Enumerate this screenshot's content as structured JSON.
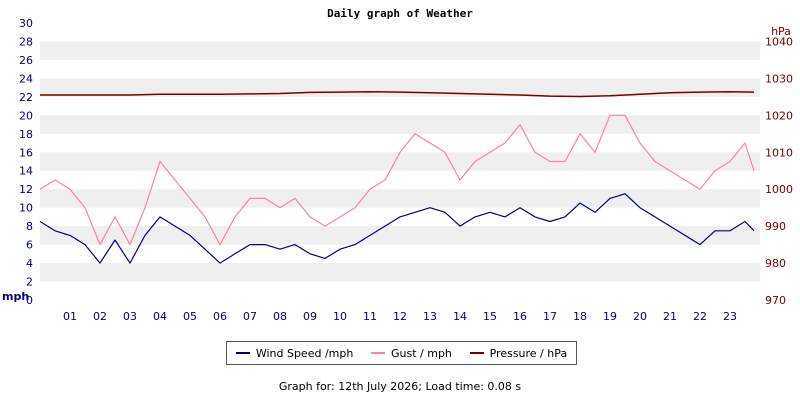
{
  "chart_data": {
    "type": "line",
    "title": "Daily graph of Weather",
    "left_axis": {
      "unit": "mph",
      "ylim": [
        0,
        30
      ],
      "ticks": [
        0,
        2,
        4,
        6,
        8,
        10,
        12,
        14,
        16,
        18,
        20,
        22,
        24,
        26,
        28,
        30
      ]
    },
    "right_axis": {
      "unit": "hPa",
      "ylim": [
        970,
        1045
      ],
      "ticks": [
        970,
        980,
        990,
        1000,
        1010,
        1020,
        1030,
        1040
      ]
    },
    "x_axis": {
      "ticks": [
        "01",
        "02",
        "03",
        "04",
        "05",
        "06",
        "07",
        "08",
        "09",
        "10",
        "11",
        "12",
        "13",
        "14",
        "15",
        "16",
        "17",
        "18",
        "19",
        "20",
        "21",
        "22",
        "23"
      ],
      "xlim": [
        0,
        24
      ],
      "unit_hours": true
    },
    "grid": "horizontal bands",
    "legend_position": "bottom",
    "series": [
      {
        "name": "Wind Speed /mph",
        "axis": "left",
        "color": "#000080",
        "x": [
          0,
          0.5,
          1,
          1.5,
          2,
          2.5,
          3,
          3.5,
          4,
          4.5,
          5,
          5.5,
          6,
          6.5,
          7,
          7.5,
          8,
          8.5,
          9,
          9.5,
          10,
          10.5,
          11,
          11.5,
          12,
          12.5,
          13,
          13.5,
          14,
          14.5,
          15,
          15.5,
          16,
          16.5,
          17,
          17.5,
          18,
          18.5,
          19,
          19.5,
          20,
          20.5,
          21,
          21.5,
          22,
          22.5,
          23,
          23.5,
          23.8
        ],
        "values": [
          8.5,
          7.5,
          7,
          6,
          4,
          6.5,
          4,
          7,
          9,
          8,
          7,
          5.5,
          4,
          5,
          6,
          6,
          5.5,
          6,
          5,
          4.5,
          5.5,
          6,
          7,
          8,
          9,
          9.5,
          10,
          9.5,
          8,
          9,
          9.5,
          9,
          10,
          9,
          8.5,
          9,
          10.5,
          9.5,
          11,
          11.5,
          10,
          9,
          8,
          7,
          6,
          7.5,
          7.5,
          8.5,
          7.5
        ]
      },
      {
        "name": "Gust / mph",
        "axis": "left",
        "color": "#ff7fa6",
        "x": [
          0,
          0.5,
          1,
          1.5,
          2,
          2.5,
          3,
          3.5,
          4,
          4.5,
          5,
          5.5,
          6,
          6.5,
          7,
          7.5,
          8,
          8.5,
          9,
          9.5,
          10,
          10.5,
          11,
          11.5,
          12,
          12.5,
          13,
          13.5,
          14,
          14.5,
          15,
          15.5,
          16,
          16.5,
          17,
          17.5,
          18,
          18.5,
          19,
          19.5,
          20,
          20.5,
          21,
          21.5,
          22,
          22.5,
          23,
          23.5,
          23.8
        ],
        "values": [
          12,
          13,
          12,
          10,
          6,
          9,
          6,
          10,
          15,
          13,
          11,
          9,
          6,
          9,
          11,
          11,
          10,
          11,
          9,
          8,
          9,
          10,
          12,
          13,
          16,
          18,
          17,
          16,
          13,
          15,
          16,
          17,
          19,
          16,
          15,
          15,
          18,
          16,
          20,
          20,
          17,
          15,
          14,
          13,
          12,
          14,
          15,
          17,
          14
        ]
      },
      {
        "name": "Pressure / hPa",
        "axis": "right",
        "color": "#7a0000",
        "x": [
          0,
          1,
          2,
          3,
          4,
          5,
          6,
          7,
          8,
          9,
          10,
          11,
          12,
          13,
          14,
          15,
          16,
          17,
          18,
          19,
          20,
          21,
          22,
          23,
          23.8
        ],
        "values": [
          1025.5,
          1025.5,
          1025.5,
          1025.5,
          1025.7,
          1025.7,
          1025.7,
          1025.8,
          1025.9,
          1026.2,
          1026.3,
          1026.4,
          1026.3,
          1026.1,
          1025.9,
          1025.7,
          1025.5,
          1025.2,
          1025.1,
          1025.3,
          1025.7,
          1026.1,
          1026.3,
          1026.4,
          1026.3
        ]
      }
    ]
  },
  "footer": "Graph for: 12th July 2026; Load time: 0.08 s",
  "colors": {
    "wind": "#000080",
    "gust": "#ff7fa6",
    "pressure": "#7a0000",
    "band": "#efefef"
  }
}
